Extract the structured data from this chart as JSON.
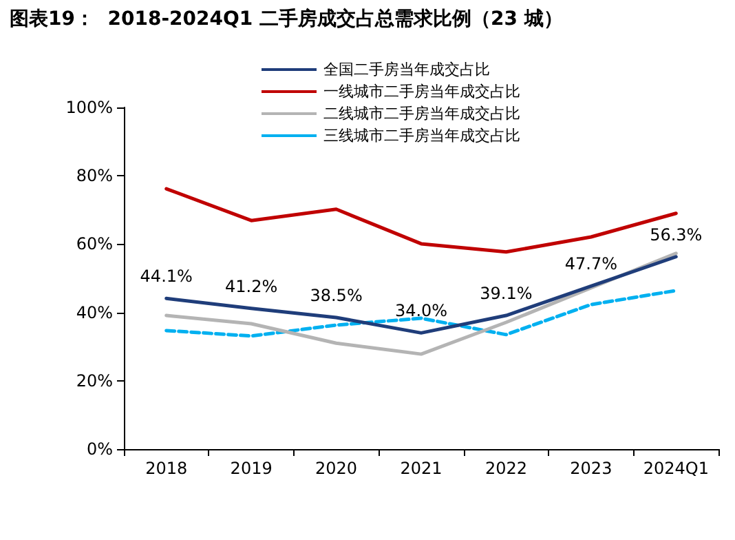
{
  "chart_data": {
    "type": "line",
    "title": "图表19：  2018-2024Q1 二手房成交占总需求比例（23 城）",
    "categories": [
      "2018",
      "2019",
      "2020",
      "2021",
      "2022",
      "2023",
      "2024Q1"
    ],
    "series": [
      {
        "name": "全国二手房当年成交占比",
        "color": "#1f3d7a",
        "line_style": "solid",
        "values": [
          44.1,
          41.2,
          38.5,
          34.0,
          39.1,
          47.7,
          56.3
        ],
        "value_labels": [
          "44.1%",
          "41.2%",
          "38.5%",
          "34.0%",
          "39.1%",
          "47.7%",
          "56.3%"
        ]
      },
      {
        "name": "一线城市二手房当年成交占比",
        "color": "#c00000",
        "line_style": "solid",
        "values": [
          76.2,
          66.9,
          70.2,
          60.1,
          57.7,
          62.1,
          69.0
        ]
      },
      {
        "name": "二线城市二手房当年成交占比",
        "color": "#b4b4b4",
        "line_style": "solid",
        "values": [
          39.1,
          36.7,
          31.0,
          27.8,
          37.1,
          47.2,
          57.3
        ]
      },
      {
        "name": "三线城市二手房当年成交占比",
        "color": "#00b0f0",
        "line_style": "dashed",
        "values": [
          34.7,
          33.1,
          36.3,
          38.3,
          33.5,
          42.3,
          46.4
        ]
      }
    ],
    "ylim": [
      0,
      100
    ],
    "yticks": [
      {
        "value": 0,
        "label": "0%"
      },
      {
        "value": 20,
        "label": "20%"
      },
      {
        "value": 40,
        "label": "40%"
      },
      {
        "value": 60,
        "label": "60%"
      },
      {
        "value": 80,
        "label": "80%"
      },
      {
        "value": 100,
        "label": "100%"
      }
    ],
    "grid": false,
    "legend": "top",
    "marker": "none"
  }
}
